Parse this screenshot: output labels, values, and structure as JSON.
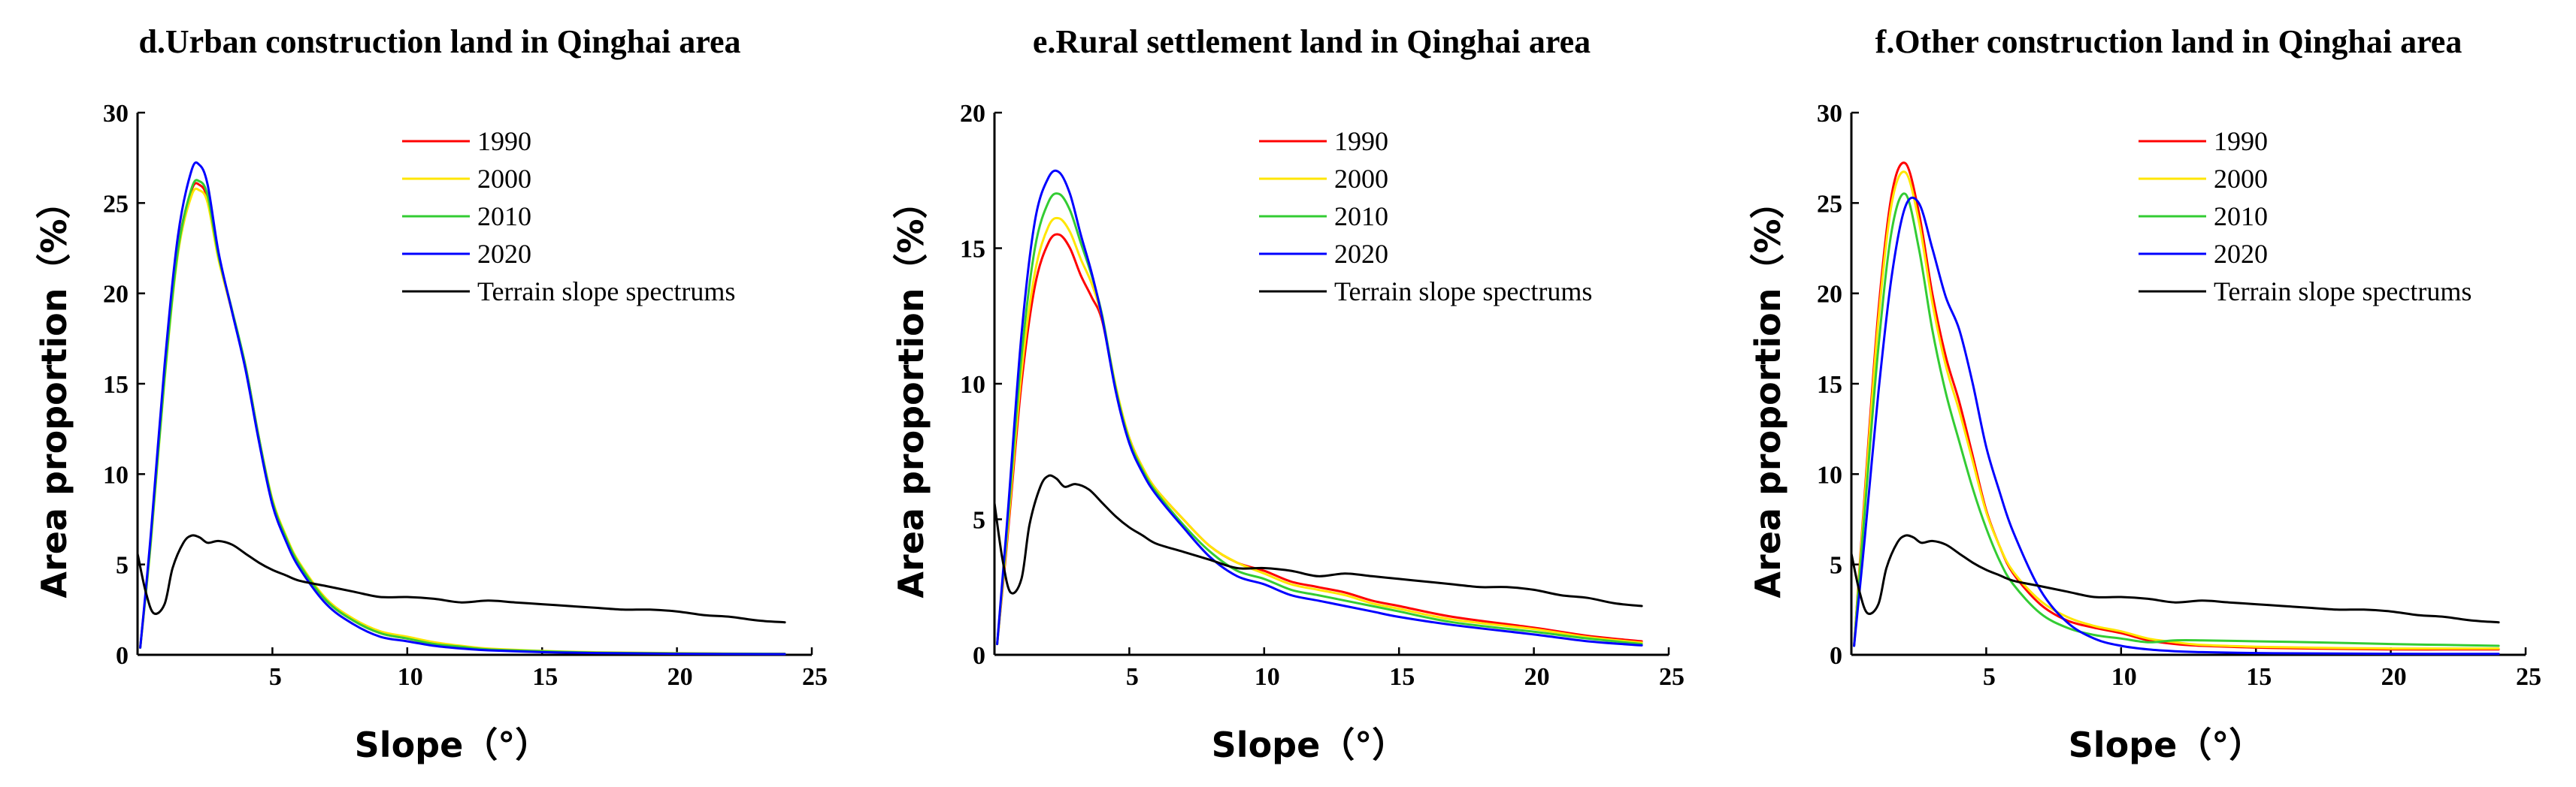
{
  "chart_data": [
    {
      "type": "line",
      "title": "d.Urban construction land in Qinghai area",
      "xlabel": "Slope（°）",
      "ylabel": "Area proportion（%）",
      "xlim": [
        0,
        25
      ],
      "ylim": [
        0,
        30
      ],
      "xticks": [
        5,
        10,
        15,
        20,
        25
      ],
      "yticks": [
        0,
        5,
        10,
        15,
        20,
        25,
        30
      ],
      "grid": false,
      "legend": "top-right",
      "series": [
        {
          "name": "1990",
          "color": "#ff0000",
          "x": [
            0.1,
            0.5,
            1.0,
            1.5,
            2.0,
            2.3,
            2.6,
            3.0,
            3.5,
            4.0,
            4.5,
            5.0,
            5.5,
            6.0,
            7.0,
            8.0,
            9.0,
            10.0,
            11.0,
            12.0,
            13.0,
            15.0,
            17.0,
            20.0,
            24.0
          ],
          "y": [
            0.4,
            6.5,
            15.5,
            22.5,
            25.7,
            26.0,
            25.2,
            22.0,
            19.0,
            16.0,
            12.0,
            8.5,
            6.5,
            5.0,
            3.0,
            1.9,
            1.2,
            0.9,
            0.6,
            0.45,
            0.3,
            0.2,
            0.12,
            0.08,
            0.05
          ]
        },
        {
          "name": "2000",
          "color": "#ffe600",
          "x": [
            0.1,
            0.5,
            1.0,
            1.5,
            2.0,
            2.3,
            2.6,
            3.0,
            3.5,
            4.0,
            4.5,
            5.0,
            5.5,
            6.0,
            7.0,
            8.0,
            9.0,
            10.0,
            11.0,
            12.0,
            13.0,
            15.0,
            17.0,
            20.0,
            24.0
          ],
          "y": [
            0.4,
            6.3,
            15.2,
            22.2,
            25.4,
            25.7,
            25.0,
            21.9,
            19.0,
            16.0,
            12.0,
            8.6,
            6.6,
            5.1,
            3.1,
            2.0,
            1.3,
            1.0,
            0.7,
            0.5,
            0.35,
            0.22,
            0.14,
            0.09,
            0.06
          ]
        },
        {
          "name": "2010",
          "color": "#33cc33",
          "x": [
            0.1,
            0.5,
            1.0,
            1.5,
            2.0,
            2.3,
            2.6,
            3.0,
            3.5,
            4.0,
            4.5,
            5.0,
            5.5,
            6.0,
            7.0,
            8.0,
            9.0,
            10.0,
            11.0,
            12.0,
            13.0,
            15.0,
            17.0,
            20.0,
            24.0
          ],
          "y": [
            0.4,
            6.4,
            15.3,
            22.4,
            25.8,
            26.2,
            25.4,
            22.1,
            19.1,
            16.0,
            12.0,
            8.5,
            6.5,
            5.0,
            3.0,
            1.9,
            1.2,
            0.9,
            0.6,
            0.45,
            0.3,
            0.2,
            0.12,
            0.08,
            0.05
          ]
        },
        {
          "name": "2020",
          "color": "#0000ff",
          "x": [
            0.1,
            0.5,
            1.0,
            1.5,
            2.0,
            2.3,
            2.6,
            3.0,
            3.5,
            4.0,
            4.5,
            5.0,
            5.5,
            6.0,
            7.0,
            8.0,
            9.0,
            10.0,
            11.0,
            12.0,
            13.0,
            15.0,
            17.0,
            20.0,
            24.0
          ],
          "y": [
            0.4,
            6.8,
            16.0,
            23.2,
            26.8,
            27.1,
            26.0,
            22.3,
            19.0,
            15.8,
            11.8,
            8.3,
            6.3,
            4.8,
            2.8,
            1.7,
            1.0,
            0.75,
            0.5,
            0.35,
            0.25,
            0.15,
            0.1,
            0.06,
            0.04
          ]
        },
        {
          "name": "Terrain slope spectrums",
          "color": "#000000",
          "x": [
            0.0,
            0.3,
            0.6,
            1.0,
            1.3,
            1.7,
            2.0,
            2.3,
            2.6,
            3.0,
            3.5,
            4.0,
            4.5,
            5.0,
            5.5,
            6.0,
            7.0,
            8.0,
            9.0,
            10.0,
            11.0,
            12.0,
            13.0,
            14.0,
            15.0,
            16.0,
            17.0,
            18.0,
            19.0,
            20.0,
            21.0,
            22.0,
            23.0,
            24.0
          ],
          "y": [
            5.6,
            3.5,
            2.3,
            2.8,
            4.8,
            6.2,
            6.6,
            6.5,
            6.2,
            6.3,
            6.1,
            5.6,
            5.1,
            4.7,
            4.4,
            4.1,
            3.8,
            3.5,
            3.2,
            3.2,
            3.1,
            2.9,
            3.0,
            2.9,
            2.8,
            2.7,
            2.6,
            2.5,
            2.5,
            2.4,
            2.2,
            2.1,
            1.9,
            1.8
          ]
        }
      ]
    },
    {
      "type": "line",
      "title": "e.Rural settlement land in Qinghai area",
      "xlabel": "Slope（°）",
      "ylabel": "Area proportion（%）",
      "xlim": [
        0,
        25
      ],
      "ylim": [
        0,
        20
      ],
      "xticks": [
        5,
        10,
        15,
        20,
        25
      ],
      "yticks": [
        0,
        5,
        10,
        15,
        20
      ],
      "grid": false,
      "legend": "top-right",
      "series": [
        {
          "name": "1990",
          "color": "#ff0000",
          "x": [
            0.1,
            0.5,
            1.0,
            1.5,
            2.0,
            2.4,
            2.8,
            3.2,
            3.6,
            4.0,
            4.5,
            5.0,
            5.5,
            6.0,
            7.0,
            8.0,
            9.0,
            10.0,
            11.0,
            12.0,
            13.0,
            14.0,
            15.0,
            17.0,
            20.0,
            22.0,
            24.0
          ],
          "y": [
            0.4,
            4.5,
            10.0,
            13.6,
            15.2,
            15.5,
            15.0,
            14.0,
            13.2,
            12.3,
            9.8,
            8.0,
            6.9,
            6.1,
            5.0,
            4.0,
            3.4,
            3.1,
            2.7,
            2.5,
            2.3,
            2.0,
            1.8,
            1.4,
            1.0,
            0.7,
            0.5
          ]
        },
        {
          "name": "2000",
          "color": "#ffe600",
          "x": [
            0.1,
            0.5,
            1.0,
            1.5,
            2.0,
            2.4,
            2.8,
            3.2,
            3.6,
            4.0,
            4.5,
            5.0,
            5.5,
            6.0,
            7.0,
            8.0,
            9.0,
            10.0,
            11.0,
            12.0,
            13.0,
            14.0,
            15.0,
            17.0,
            20.0,
            22.0,
            24.0
          ],
          "y": [
            0.4,
            4.7,
            10.4,
            14.1,
            15.8,
            16.1,
            15.6,
            14.6,
            13.7,
            12.4,
            9.9,
            8.0,
            6.9,
            6.1,
            5.0,
            4.0,
            3.4,
            3.0,
            2.6,
            2.4,
            2.2,
            1.9,
            1.7,
            1.3,
            0.95,
            0.65,
            0.45
          ]
        },
        {
          "name": "2010",
          "color": "#33cc33",
          "x": [
            0.1,
            0.5,
            1.0,
            1.5,
            2.0,
            2.4,
            2.8,
            3.2,
            3.6,
            4.0,
            4.5,
            5.0,
            5.5,
            6.0,
            7.0,
            8.0,
            9.0,
            10.0,
            11.0,
            12.0,
            13.0,
            14.0,
            15.0,
            17.0,
            20.0,
            22.0,
            24.0
          ],
          "y": [
            0.4,
            5.0,
            11.0,
            15.0,
            16.7,
            17.0,
            16.4,
            15.2,
            14.0,
            12.5,
            9.8,
            7.9,
            6.8,
            6.0,
            4.8,
            3.8,
            3.1,
            2.8,
            2.4,
            2.2,
            2.0,
            1.8,
            1.6,
            1.2,
            0.85,
            0.6,
            0.4
          ]
        },
        {
          "name": "2020",
          "color": "#0000ff",
          "x": [
            0.1,
            0.5,
            1.0,
            1.5,
            2.0,
            2.4,
            2.8,
            3.2,
            3.6,
            4.0,
            4.5,
            5.0,
            5.5,
            6.0,
            7.0,
            8.0,
            9.0,
            10.0,
            11.0,
            12.0,
            13.0,
            14.0,
            15.0,
            17.0,
            20.0,
            22.0,
            24.0
          ],
          "y": [
            0.4,
            5.3,
            11.8,
            16.0,
            17.6,
            17.8,
            17.0,
            15.5,
            14.1,
            12.4,
            9.7,
            7.8,
            6.7,
            5.9,
            4.7,
            3.6,
            2.9,
            2.6,
            2.2,
            2.0,
            1.8,
            1.6,
            1.4,
            1.1,
            0.75,
            0.5,
            0.35
          ]
        },
        {
          "name": "Terrain slope spectrums",
          "color": "#000000",
          "x": [
            0.0,
            0.3,
            0.6,
            1.0,
            1.3,
            1.7,
            2.0,
            2.3,
            2.6,
            3.0,
            3.5,
            4.0,
            4.5,
            5.0,
            5.5,
            6.0,
            7.0,
            8.0,
            9.0,
            10.0,
            11.0,
            12.0,
            13.0,
            14.0,
            15.0,
            16.0,
            17.0,
            18.0,
            19.0,
            20.0,
            21.0,
            22.0,
            23.0,
            24.0
          ],
          "y": [
            5.6,
            3.5,
            2.3,
            2.8,
            4.8,
            6.2,
            6.6,
            6.5,
            6.2,
            6.3,
            6.1,
            5.6,
            5.1,
            4.7,
            4.4,
            4.1,
            3.8,
            3.5,
            3.2,
            3.2,
            3.1,
            2.9,
            3.0,
            2.9,
            2.8,
            2.7,
            2.6,
            2.5,
            2.5,
            2.4,
            2.2,
            2.1,
            1.9,
            1.8
          ]
        }
      ]
    },
    {
      "type": "line",
      "title": "f.Other construction land in Qinghai area",
      "xlabel": "Slope（°）",
      "ylabel": "Area proportion（%）",
      "xlim": [
        0,
        25
      ],
      "ylim": [
        0,
        30
      ],
      "xticks": [
        5,
        10,
        15,
        20,
        25
      ],
      "yticks": [
        0,
        5,
        10,
        15,
        20,
        25,
        30
      ],
      "grid": false,
      "legend": "top-right",
      "series": [
        {
          "name": "1990",
          "color": "#ff0000",
          "x": [
            0.1,
            0.5,
            1.0,
            1.5,
            2.0,
            2.5,
            3.0,
            3.5,
            4.0,
            4.5,
            5.0,
            5.5,
            6.0,
            7.0,
            8.0,
            9.0,
            10.0,
            11.0,
            12.0,
            13.0,
            15.0,
            17.0,
            20.0,
            22.0,
            24.0
          ],
          "y": [
            0.5,
            9.0,
            19.0,
            25.5,
            27.2,
            24.5,
            20.0,
            16.5,
            14.0,
            11.0,
            8.0,
            6.0,
            4.5,
            2.8,
            1.9,
            1.5,
            1.2,
            0.8,
            0.6,
            0.5,
            0.4,
            0.35,
            0.3,
            0.3,
            0.3
          ]
        },
        {
          "name": "2000",
          "color": "#ffe600",
          "x": [
            0.1,
            0.5,
            1.0,
            1.5,
            2.0,
            2.5,
            3.0,
            3.5,
            4.0,
            4.5,
            5.0,
            5.5,
            6.0,
            7.0,
            8.0,
            9.0,
            10.0,
            11.0,
            12.0,
            13.0,
            15.0,
            17.0,
            20.0,
            22.0,
            24.0
          ],
          "y": [
            0.5,
            8.7,
            18.5,
            25.0,
            26.7,
            24.0,
            19.5,
            16.0,
            13.5,
            10.7,
            7.9,
            6.0,
            4.6,
            3.0,
            2.1,
            1.6,
            1.3,
            0.9,
            0.7,
            0.55,
            0.45,
            0.4,
            0.35,
            0.35,
            0.35
          ]
        },
        {
          "name": "2010",
          "color": "#33cc33",
          "x": [
            0.1,
            0.5,
            1.0,
            1.5,
            2.0,
            2.5,
            3.0,
            3.5,
            4.0,
            4.5,
            5.0,
            5.5,
            6.0,
            7.0,
            8.0,
            9.0,
            10.0,
            11.0,
            12.0,
            13.0,
            15.0,
            17.0,
            20.0,
            22.0,
            24.0
          ],
          "y": [
            0.5,
            8.0,
            17.0,
            23.5,
            25.5,
            22.5,
            18.0,
            14.5,
            11.8,
            9.2,
            7.0,
            5.2,
            3.9,
            2.3,
            1.5,
            1.1,
            0.9,
            0.7,
            0.8,
            0.8,
            0.75,
            0.7,
            0.6,
            0.55,
            0.5
          ]
        },
        {
          "name": "2020",
          "color": "#0000ff",
          "x": [
            0.1,
            0.5,
            1.0,
            1.5,
            2.0,
            2.5,
            3.0,
            3.5,
            4.0,
            4.5,
            5.0,
            5.5,
            6.0,
            7.0,
            8.0,
            9.0,
            10.0,
            11.0,
            12.0,
            13.0,
            15.0,
            17.0,
            20.0,
            22.0,
            24.0
          ],
          "y": [
            0.5,
            6.5,
            14.5,
            21.0,
            24.8,
            25.0,
            22.5,
            19.8,
            18.0,
            15.0,
            11.5,
            9.0,
            6.8,
            3.6,
            1.8,
            0.9,
            0.5,
            0.3,
            0.2,
            0.15,
            0.1,
            0.08,
            0.06,
            0.05,
            0.05
          ]
        },
        {
          "name": "Terrain slope spectrums",
          "color": "#000000",
          "x": [
            0.0,
            0.3,
            0.6,
            1.0,
            1.3,
            1.7,
            2.0,
            2.3,
            2.6,
            3.0,
            3.5,
            4.0,
            4.5,
            5.0,
            5.5,
            6.0,
            7.0,
            8.0,
            9.0,
            10.0,
            11.0,
            12.0,
            13.0,
            14.0,
            15.0,
            16.0,
            17.0,
            18.0,
            19.0,
            20.0,
            21.0,
            22.0,
            23.0,
            24.0
          ],
          "y": [
            5.6,
            3.5,
            2.3,
            2.8,
            4.8,
            6.2,
            6.6,
            6.5,
            6.2,
            6.3,
            6.1,
            5.6,
            5.1,
            4.7,
            4.4,
            4.1,
            3.8,
            3.5,
            3.2,
            3.2,
            3.1,
            2.9,
            3.0,
            2.9,
            2.8,
            2.7,
            2.6,
            2.5,
            2.5,
            2.4,
            2.2,
            2.1,
            1.9,
            1.8
          ]
        }
      ]
    }
  ]
}
